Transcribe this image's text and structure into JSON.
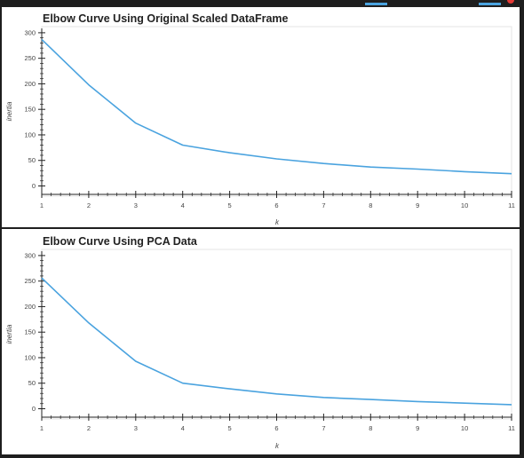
{
  "colors": {
    "line": "#4aa3df",
    "background": "#1e1e1e",
    "panel": "#ffffff"
  },
  "chart_data": [
    {
      "type": "line",
      "title": "Elbow Curve Using Original Scaled DataFrame",
      "xlabel": "k",
      "ylabel": "inertia",
      "x": [
        1,
        2,
        3,
        4,
        5,
        6,
        7,
        8,
        9,
        10,
        11
      ],
      "x_ticks": [
        "1",
        "2",
        "3",
        "4",
        "5",
        "6",
        "7",
        "8",
        "9",
        "10",
        "11"
      ],
      "y_ticks": [
        "0",
        "50",
        "100",
        "150",
        "200",
        "250",
        "300"
      ],
      "xlim": [
        1,
        11
      ],
      "ylim": [
        -20,
        312
      ],
      "series": [
        {
          "values": [
            287,
            198,
            123,
            80,
            65,
            53,
            44,
            37,
            33,
            28,
            24
          ]
        }
      ],
      "grid": false
    },
    {
      "type": "line",
      "title": "Elbow Curve Using PCA Data",
      "xlabel": "k",
      "ylabel": "inertia",
      "x": [
        1,
        2,
        3,
        4,
        5,
        6,
        7,
        8,
        9,
        10,
        11
      ],
      "x_ticks": [
        "1",
        "2",
        "3",
        "4",
        "5",
        "6",
        "7",
        "8",
        "9",
        "10",
        "11"
      ],
      "y_ticks": [
        "0",
        "50",
        "100",
        "150",
        "200",
        "250",
        "300"
      ],
      "xlim": [
        1,
        11
      ],
      "ylim": [
        -20,
        312
      ],
      "series": [
        {
          "values": [
            256,
            168,
            93,
            50,
            39,
            29,
            22,
            18,
            14,
            11,
            8
          ]
        }
      ],
      "grid": false
    }
  ]
}
